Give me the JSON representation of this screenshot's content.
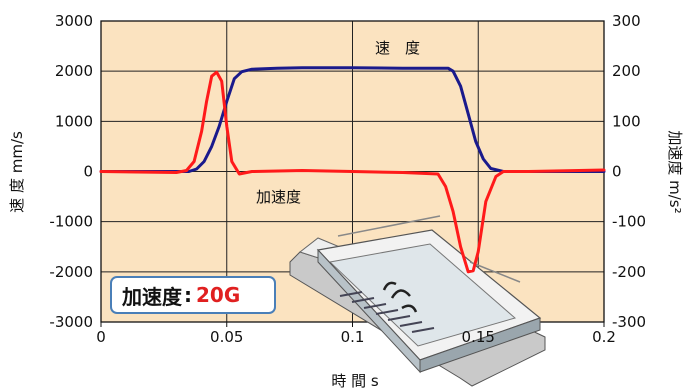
{
  "chart_data": {
    "type": "line",
    "xlabel": "時 間 s",
    "ylabel_left": "速 度  mm/s",
    "ylabel_right": "加速度  m/s²",
    "xlim": [
      0,
      0.2
    ],
    "ylim_left": [
      -3000,
      3000
    ],
    "ylim_right": [
      -300,
      300
    ],
    "x_ticks": [
      "0",
      "0.05",
      "0.1",
      "0.15",
      "0.2"
    ],
    "y_ticks_left": [
      "3000",
      "2000",
      "1000",
      "0",
      "-1000",
      "-2000",
      "-3000"
    ],
    "y_ticks_right": [
      "300",
      "200",
      "100",
      "0",
      "-100",
      "-200",
      "-300"
    ],
    "grid": true,
    "series": [
      {
        "name": "速　度",
        "axis": "left",
        "color": "#1a1a8c",
        "x": [
          0,
          0.02,
          0.035,
          0.038,
          0.041,
          0.044,
          0.047,
          0.05,
          0.053,
          0.056,
          0.06,
          0.07,
          0.08,
          0.1,
          0.12,
          0.138,
          0.14,
          0.143,
          0.146,
          0.149,
          0.152,
          0.155,
          0.16,
          0.2
        ],
        "y": [
          0,
          0,
          0,
          50,
          200,
          500,
          900,
          1400,
          1850,
          1990,
          2040,
          2060,
          2070,
          2070,
          2060,
          2060,
          2000,
          1700,
          1150,
          600,
          250,
          60,
          0,
          0
        ]
      },
      {
        "name": "加速度",
        "axis": "right",
        "color": "#ff1a1a",
        "x": [
          0,
          0.03,
          0.034,
          0.037,
          0.04,
          0.042,
          0.044,
          0.046,
          0.048,
          0.05,
          0.052,
          0.055,
          0.06,
          0.08,
          0.1,
          0.12,
          0.134,
          0.137,
          0.14,
          0.143,
          0.146,
          0.148,
          0.15,
          0.153,
          0.157,
          0.16,
          0.17,
          0.2
        ],
        "y": [
          0,
          -2,
          2,
          20,
          80,
          140,
          190,
          198,
          180,
          90,
          20,
          -5,
          0,
          2,
          0,
          -2,
          -5,
          -30,
          -80,
          -150,
          -200,
          -198,
          -160,
          -60,
          -10,
          0,
          0,
          3
        ]
      }
    ],
    "annotations": {
      "velocity_label": "速　度",
      "accel_label": "加速度"
    }
  },
  "badge": {
    "label": "加速度",
    "colon": ":",
    "value": "20G"
  },
  "colors": {
    "plot_background": "#fbe3c0",
    "grid": "#222222",
    "velocity": "#1a1a8c",
    "acceleration": "#ff1a1a",
    "badge_border": "#4a7fb8",
    "badge_value": "#e02020"
  },
  "illustration": {
    "icon": "linear-motor-stage-icon"
  }
}
